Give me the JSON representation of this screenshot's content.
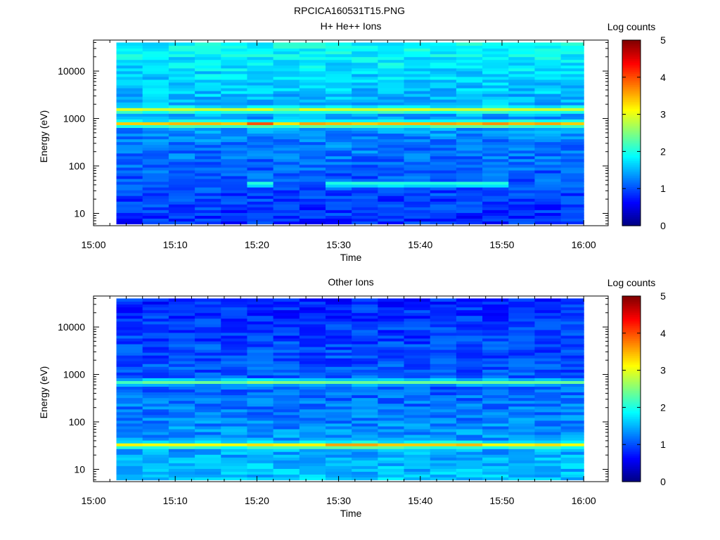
{
  "figure_title": "RPCICA160531T15.PNG",
  "chart_data": [
    {
      "type": "heatmap",
      "title": "H+ He++ Ions",
      "xlabel": "Time",
      "ylabel": "Energy (eV)",
      "y_scale": "log",
      "xticks": [
        "15:00",
        "15:10",
        "15:20",
        "15:30",
        "15:40",
        "15:50",
        "16:00"
      ],
      "xlim_minutes": [
        0,
        63
      ],
      "yticks": [
        "10",
        "100",
        "1000",
        "10000"
      ],
      "ylim": [
        5.5,
        45000
      ],
      "colorbar": {
        "label": "Log counts",
        "ticks": [
          "0",
          "1",
          "2",
          "3",
          "4",
          "5"
        ],
        "range": [
          0,
          5
        ],
        "colormap": "jet"
      },
      "time_start_min": 2.8,
      "time_step_min": 3.2,
      "n_time": 18,
      "band_peaks": [
        {
          "energy_eV": 780,
          "log_counts": [
            3.4,
            3.4,
            3.5,
            3.5,
            3.4,
            4.0,
            3.3,
            3.6,
            3.5,
            3.4,
            3.5,
            3.5,
            3.6,
            3.5,
            3.7,
            3.5,
            3.6,
            3.4
          ]
        },
        {
          "energy_eV": 1550,
          "log_counts": [
            3.0,
            2.9,
            2.9,
            2.9,
            2.9,
            3.0,
            2.5,
            3.0,
            2.9,
            2.9,
            2.9,
            3.0,
            2.9,
            2.9,
            2.9,
            2.9,
            2.9,
            2.9
          ]
        },
        {
          "energy_eV": 42,
          "log_counts": [
            1.0,
            1.0,
            1.0,
            1.0,
            1.0,
            2.2,
            1.0,
            1.0,
            2.2,
            2.2,
            2.2,
            2.2,
            2.2,
            2.2,
            2.2,
            1.0,
            1.0,
            1.0
          ]
        }
      ],
      "background": {
        "high_energy_log_counts": 1.9,
        "mid_energy_log_counts": 1.3,
        "low_energy_log_counts": 0.8
      }
    },
    {
      "type": "heatmap",
      "title": "Other Ions",
      "xlabel": "Time",
      "ylabel": "Energy (eV)",
      "y_scale": "log",
      "xticks": [
        "15:00",
        "15:10",
        "15:20",
        "15:30",
        "15:40",
        "15:50",
        "16:00"
      ],
      "xlim_minutes": [
        0,
        63
      ],
      "yticks": [
        "10",
        "100",
        "1000",
        "10000"
      ],
      "ylim": [
        5.5,
        45000
      ],
      "colorbar": {
        "label": "Log counts",
        "ticks": [
          "0",
          "1",
          "2",
          "3",
          "4",
          "5"
        ],
        "range": [
          0,
          5
        ],
        "colormap": "jet"
      },
      "time_start_min": 2.8,
      "time_step_min": 3.2,
      "n_time": 18,
      "band_peaks": [
        {
          "energy_eV": 33,
          "log_counts": [
            3.2,
            3.1,
            3.1,
            3.1,
            3.1,
            3.3,
            3.2,
            3.2,
            3.6,
            3.6,
            3.4,
            3.4,
            3.4,
            3.5,
            3.1,
            3.2,
            3.3,
            3.1
          ]
        },
        {
          "energy_eV": 700,
          "log_counts": [
            2.2,
            2.4,
            2.4,
            2.4,
            2.3,
            2.6,
            2.5,
            2.5,
            2.4,
            2.4,
            2.4,
            2.4,
            2.4,
            2.4,
            2.4,
            2.4,
            2.4,
            2.4
          ]
        }
      ],
      "background": {
        "high_energy_log_counts": 0.8,
        "mid_energy_log_counts": 1.1,
        "low_energy_log_counts": 1.6
      }
    }
  ]
}
